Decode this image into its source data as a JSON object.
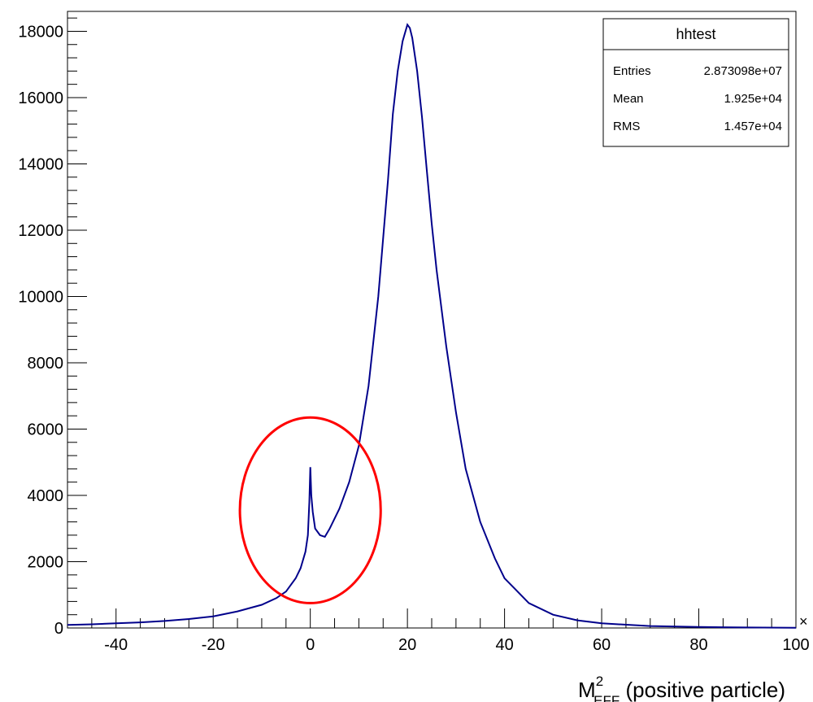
{
  "chart_data": {
    "type": "line",
    "title": "",
    "xlabel": "M_EFF^2 (positive particle)",
    "xlabel_parts": {
      "main": "M",
      "sup": "2",
      "sub": "EFF",
      "rest": " (positive particle)"
    },
    "ylabel": "",
    "xlim": [
      -50,
      100
    ],
    "ylim": [
      0,
      18600
    ],
    "x_ticks": [
      -40,
      -20,
      0,
      20,
      40,
      60,
      80,
      100
    ],
    "y_ticks": [
      0,
      2000,
      4000,
      6000,
      8000,
      10000,
      12000,
      14000,
      16000,
      18000
    ],
    "series": [
      {
        "color": "#00008b",
        "x": [
          -50,
          -45,
          -40,
          -35,
          -30,
          -25,
          -20,
          -15,
          -10,
          -7,
          -5,
          -3,
          -2,
          -1,
          -0.5,
          -0.2,
          0,
          0.2,
          0.5,
          1,
          2,
          3,
          4,
          6,
          8,
          10,
          12,
          14,
          16,
          17,
          18,
          19,
          20,
          20.5,
          21,
          22,
          23,
          24,
          25,
          26,
          28,
          30,
          32,
          35,
          38,
          40,
          45,
          50,
          55,
          60,
          70,
          80,
          90,
          100
        ],
        "y": [
          90,
          110,
          140,
          170,
          210,
          270,
          350,
          500,
          700,
          900,
          1100,
          1500,
          1800,
          2300,
          2800,
          3800,
          4850,
          4000,
          3500,
          3000,
          2800,
          2750,
          3000,
          3600,
          4400,
          5500,
          7300,
          10000,
          13500,
          15500,
          16800,
          17700,
          18200,
          18100,
          17800,
          16800,
          15400,
          13800,
          12200,
          10800,
          8500,
          6500,
          4800,
          3200,
          2100,
          1500,
          750,
          400,
          230,
          140,
          60,
          30,
          15,
          5
        ]
      }
    ],
    "annotation": {
      "shape": "ellipse",
      "color": "#ff0000",
      "cx": 0,
      "cy": 3550,
      "rx": 14.5,
      "ry": 2800
    },
    "grid": false,
    "legend": "none"
  },
  "stats_box": {
    "title": "hhtest",
    "rows": [
      {
        "label": "Entries",
        "value": "2.873098e+07"
      },
      {
        "label": "Mean",
        "value": "1.925e+04"
      },
      {
        "label": "RMS",
        "value": "1.457e+04"
      }
    ]
  },
  "corner_marker": "×"
}
